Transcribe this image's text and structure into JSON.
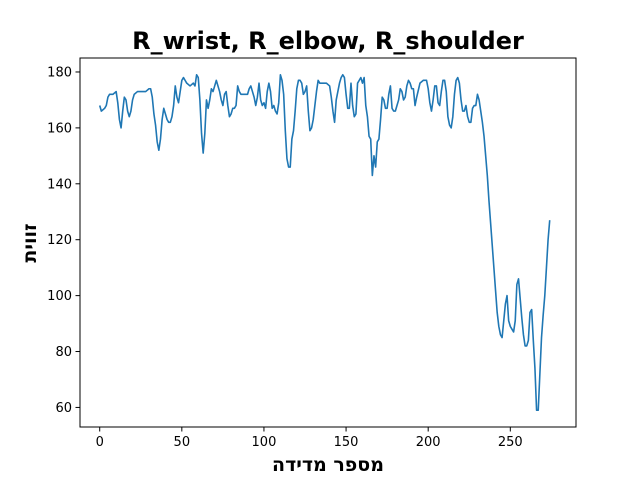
{
  "chart_data": {
    "type": "line",
    "title": "R_wrist, R_elbow, R_shoulder",
    "xlabel": "מספר מדידה",
    "ylabel": "זווית",
    "xlim": [
      -12,
      290
    ],
    "ylim": [
      53,
      185
    ],
    "xticks": [
      0,
      50,
      100,
      150,
      200,
      250
    ],
    "yticks": [
      60,
      80,
      100,
      120,
      140,
      160,
      180
    ],
    "grid": false,
    "series": [
      {
        "color": "#1f77b4",
        "points": [
          [
            0,
            168
          ],
          [
            1,
            166
          ],
          [
            3,
            167
          ],
          [
            4,
            168
          ],
          [
            5,
            171
          ],
          [
            6,
            172
          ],
          [
            8,
            172
          ],
          [
            10,
            173
          ],
          [
            11,
            169
          ],
          [
            12,
            163
          ],
          [
            13,
            160
          ],
          [
            14,
            166
          ],
          [
            15,
            171
          ],
          [
            16,
            170
          ],
          [
            17,
            166
          ],
          [
            18,
            164
          ],
          [
            19,
            166
          ],
          [
            20,
            170
          ],
          [
            21,
            172
          ],
          [
            23,
            173
          ],
          [
            25,
            173
          ],
          [
            28,
            173
          ],
          [
            30,
            174
          ],
          [
            31,
            174
          ],
          [
            32,
            171
          ],
          [
            33,
            165
          ],
          [
            34,
            161
          ],
          [
            35,
            155
          ],
          [
            36,
            152
          ],
          [
            37,
            156
          ],
          [
            38,
            163
          ],
          [
            39,
            167
          ],
          [
            40,
            165
          ],
          [
            41,
            163
          ],
          [
            42,
            162
          ],
          [
            43,
            162
          ],
          [
            44,
            164
          ],
          [
            45,
            168
          ],
          [
            46,
            175
          ],
          [
            47,
            171
          ],
          [
            48,
            169
          ],
          [
            49,
            173
          ],
          [
            50,
            177
          ],
          [
            51,
            178
          ],
          [
            52,
            177
          ],
          [
            53,
            176
          ],
          [
            55,
            175
          ],
          [
            57,
            176
          ],
          [
            58,
            175
          ],
          [
            59,
            179
          ],
          [
            60,
            178
          ],
          [
            61,
            170
          ],
          [
            62,
            158
          ],
          [
            63,
            151
          ],
          [
            64,
            158
          ],
          [
            65,
            170
          ],
          [
            66,
            167
          ],
          [
            67,
            170
          ],
          [
            68,
            174
          ],
          [
            69,
            173
          ],
          [
            70,
            175
          ],
          [
            71,
            177
          ],
          [
            72,
            175
          ],
          [
            73,
            173
          ],
          [
            74,
            170
          ],
          [
            75,
            168
          ],
          [
            76,
            172
          ],
          [
            77,
            173
          ],
          [
            78,
            168
          ],
          [
            79,
            164
          ],
          [
            80,
            165
          ],
          [
            81,
            167
          ],
          [
            82,
            167
          ],
          [
            83,
            168
          ],
          [
            84,
            175
          ],
          [
            85,
            173
          ],
          [
            86,
            172
          ],
          [
            88,
            172
          ],
          [
            90,
            172
          ],
          [
            91,
            174
          ],
          [
            92,
            175
          ],
          [
            93,
            173
          ],
          [
            94,
            171
          ],
          [
            95,
            168
          ],
          [
            96,
            171
          ],
          [
            97,
            176
          ],
          [
            98,
            170
          ],
          [
            99,
            168
          ],
          [
            100,
            169
          ],
          [
            101,
            167
          ],
          [
            102,
            173
          ],
          [
            103,
            176
          ],
          [
            104,
            173
          ],
          [
            105,
            167
          ],
          [
            106,
            168
          ],
          [
            107,
            166
          ],
          [
            108,
            165
          ],
          [
            109,
            169
          ],
          [
            110,
            179
          ],
          [
            111,
            177
          ],
          [
            112,
            172
          ],
          [
            113,
            159
          ],
          [
            114,
            149
          ],
          [
            115,
            146
          ],
          [
            116,
            146
          ],
          [
            117,
            156
          ],
          [
            118,
            159
          ],
          [
            119,
            166
          ],
          [
            120,
            174
          ],
          [
            121,
            177
          ],
          [
            122,
            177
          ],
          [
            123,
            176
          ],
          [
            124,
            172
          ],
          [
            125,
            173
          ],
          [
            126,
            175
          ],
          [
            127,
            166
          ],
          [
            128,
            159
          ],
          [
            129,
            160
          ],
          [
            130,
            163
          ],
          [
            131,
            168
          ],
          [
            132,
            173
          ],
          [
            133,
            177
          ],
          [
            134,
            176
          ],
          [
            136,
            176
          ],
          [
            138,
            176
          ],
          [
            140,
            175
          ],
          [
            141,
            171
          ],
          [
            142,
            166
          ],
          [
            143,
            162
          ],
          [
            144,
            170
          ],
          [
            145,
            173
          ],
          [
            146,
            176
          ],
          [
            147,
            178
          ],
          [
            148,
            179
          ],
          [
            149,
            178
          ],
          [
            150,
            172
          ],
          [
            151,
            167
          ],
          [
            152,
            167
          ],
          [
            153,
            176
          ],
          [
            154,
            168
          ],
          [
            155,
            164
          ],
          [
            156,
            165
          ],
          [
            157,
            176
          ],
          [
            158,
            177
          ],
          [
            159,
            178
          ],
          [
            160,
            176
          ],
          [
            161,
            178
          ],
          [
            162,
            168
          ],
          [
            163,
            164
          ],
          [
            164,
            157
          ],
          [
            165,
            156
          ],
          [
            166,
            143
          ],
          [
            167,
            150
          ],
          [
            168,
            146
          ],
          [
            169,
            155
          ],
          [
            170,
            156
          ],
          [
            171,
            163
          ],
          [
            172,
            171
          ],
          [
            173,
            170
          ],
          [
            174,
            167
          ],
          [
            175,
            167
          ],
          [
            176,
            172
          ],
          [
            177,
            175
          ],
          [
            178,
            167
          ],
          [
            179,
            166
          ],
          [
            180,
            166
          ],
          [
            181,
            168
          ],
          [
            182,
            170
          ],
          [
            183,
            174
          ],
          [
            184,
            173
          ],
          [
            185,
            170
          ],
          [
            186,
            171
          ],
          [
            187,
            175
          ],
          [
            188,
            177
          ],
          [
            189,
            176
          ],
          [
            190,
            174
          ],
          [
            191,
            174
          ],
          [
            192,
            168
          ],
          [
            193,
            171
          ],
          [
            195,
            176
          ],
          [
            197,
            177
          ],
          [
            199,
            177
          ],
          [
            200,
            174
          ],
          [
            201,
            169
          ],
          [
            202,
            166
          ],
          [
            203,
            170
          ],
          [
            204,
            175
          ],
          [
            205,
            175
          ],
          [
            206,
            169
          ],
          [
            207,
            168
          ],
          [
            208,
            173
          ],
          [
            209,
            177
          ],
          [
            210,
            177
          ],
          [
            211,
            173
          ],
          [
            212,
            164
          ],
          [
            213,
            161
          ],
          [
            214,
            160
          ],
          [
            215,
            164
          ],
          [
            216,
            172
          ],
          [
            217,
            177
          ],
          [
            218,
            178
          ],
          [
            219,
            176
          ],
          [
            220,
            170
          ],
          [
            221,
            166
          ],
          [
            222,
            166
          ],
          [
            223,
            168
          ],
          [
            224,
            164
          ],
          [
            225,
            162
          ],
          [
            226,
            162
          ],
          [
            227,
            167
          ],
          [
            228,
            168
          ],
          [
            229,
            168
          ],
          [
            230,
            172
          ],
          [
            231,
            170
          ],
          [
            232,
            166
          ],
          [
            233,
            162
          ],
          [
            234,
            157
          ],
          [
            235,
            150
          ],
          [
            236,
            143
          ],
          [
            237,
            134
          ],
          [
            238,
            126
          ],
          [
            239,
            118
          ],
          [
            240,
            110
          ],
          [
            241,
            102
          ],
          [
            242,
            94
          ],
          [
            243,
            89
          ],
          [
            244,
            86
          ],
          [
            245,
            85
          ],
          [
            246,
            91
          ],
          [
            247,
            97
          ],
          [
            248,
            100
          ],
          [
            249,
            91
          ],
          [
            250,
            89
          ],
          [
            251,
            88
          ],
          [
            252,
            87
          ],
          [
            253,
            91
          ],
          [
            254,
            104
          ],
          [
            255,
            106
          ],
          [
            256,
            99
          ],
          [
            257,
            92
          ],
          [
            258,
            86
          ],
          [
            259,
            82
          ],
          [
            260,
            82
          ],
          [
            261,
            84
          ],
          [
            262,
            94
          ],
          [
            263,
            95
          ],
          [
            264,
            84
          ],
          [
            265,
            74
          ],
          [
            266,
            59
          ],
          [
            267,
            59
          ],
          [
            268,
            72
          ],
          [
            269,
            85
          ],
          [
            270,
            93
          ],
          [
            271,
            100
          ],
          [
            272,
            110
          ],
          [
            273,
            120
          ],
          [
            274,
            127
          ]
        ]
      }
    ]
  }
}
